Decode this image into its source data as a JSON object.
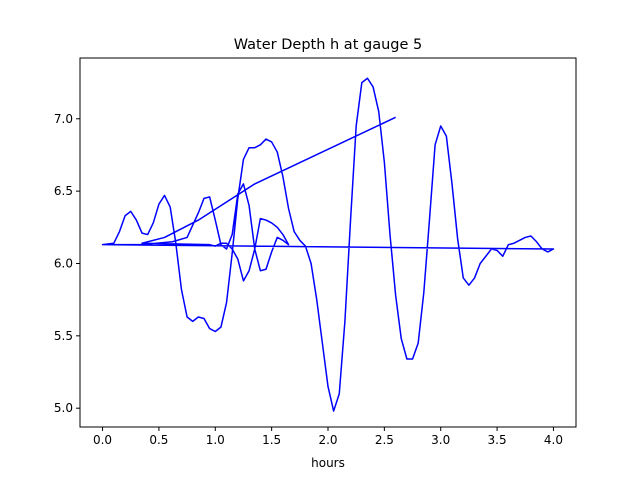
{
  "chart_data": {
    "type": "line",
    "title": "Water Depth h at gauge 5",
    "xlabel": "hours",
    "ylabel": "",
    "xlim": [
      -0.2,
      4.2
    ],
    "ylim": [
      4.87,
      7.42
    ],
    "xticks": [
      0.0,
      0.5,
      1.0,
      1.5,
      2.0,
      2.5,
      3.0,
      3.5,
      4.0
    ],
    "xtick_labels": [
      "0.0",
      "0.5",
      "1.0",
      "1.5",
      "2.0",
      "2.5",
      "3.0",
      "3.5",
      "4.0"
    ],
    "yticks": [
      5.0,
      5.5,
      6.0,
      6.5,
      7.0
    ],
    "ytick_labels": [
      "5.0",
      "5.5",
      "6.0",
      "6.5",
      "7.0"
    ],
    "grid": false,
    "legend": false,
    "color": "#0000ff",
    "series": [
      {
        "name": "",
        "x": [
          0.0,
          0.1,
          0.15,
          0.2,
          0.25,
          0.3,
          0.35,
          0.4,
          0.45,
          0.5,
          0.55,
          0.6,
          0.65,
          0.7,
          0.75,
          0.8,
          0.85,
          0.9,
          0.95,
          1.0,
          1.05,
          1.1,
          1.15,
          1.2,
          1.25,
          1.3,
          1.35,
          1.4,
          1.45,
          1.5,
          1.55,
          1.6,
          1.65,
          1.7,
          1.75,
          1.8,
          1.85,
          1.9,
          1.95,
          2.0,
          2.05,
          2.1,
          2.15,
          2.2,
          2.25,
          2.3,
          2.35,
          2.4,
          2.45,
          2.5,
          2.55,
          2.6,
          2.65,
          2.7,
          2.75,
          2.8,
          2.85,
          2.9,
          2.95,
          3.0,
          3.05,
          3.1,
          3.15,
          3.2,
          3.25,
          3.3,
          3.35,
          3.4,
          3.45,
          3.5,
          3.55,
          3.6,
          3.65,
          3.7,
          3.75,
          3.8,
          3.85,
          3.9,
          3.95,
          4.0,
          0.0,
          0.35,
          0.62,
          0.75,
          0.85,
          0.9,
          0.95,
          1.0,
          1.05,
          1.1,
          1.15,
          1.2,
          1.25,
          1.3,
          1.35,
          1.4,
          1.45,
          1.5,
          1.55,
          1.6,
          1.65,
          1.6,
          1.55,
          1.5,
          1.45,
          1.4,
          1.35,
          1.3,
          1.25,
          1.2,
          1.15,
          1.1,
          1.05,
          1.0,
          0.95,
          0.35,
          0.55,
          0.85,
          1.35,
          2.6
        ],
        "y": [
          6.13,
          6.14,
          6.22,
          6.33,
          6.36,
          6.3,
          6.21,
          6.2,
          6.28,
          6.41,
          6.47,
          6.39,
          6.14,
          5.82,
          5.63,
          5.6,
          5.63,
          5.62,
          5.55,
          5.53,
          5.56,
          5.73,
          6.07,
          6.45,
          6.72,
          6.8,
          6.8,
          6.82,
          6.86,
          6.84,
          6.77,
          6.6,
          6.38,
          6.22,
          6.16,
          6.12,
          6.0,
          5.75,
          5.45,
          5.15,
          4.98,
          5.1,
          5.6,
          6.3,
          6.95,
          7.25,
          7.28,
          7.22,
          7.05,
          6.7,
          6.2,
          5.78,
          5.48,
          5.34,
          5.34,
          5.45,
          5.8,
          6.3,
          6.82,
          6.95,
          6.88,
          6.55,
          6.17,
          5.9,
          5.85,
          5.9,
          6.0,
          6.05,
          6.1,
          6.09,
          6.05,
          6.13,
          6.14,
          6.16,
          6.18,
          6.19,
          6.15,
          6.1,
          6.08,
          6.1,
          6.13,
          6.13,
          6.15,
          6.18,
          6.35,
          6.45,
          6.46,
          6.3,
          6.13,
          6.1,
          6.2,
          6.48,
          6.55,
          6.4,
          6.1,
          5.95,
          5.96,
          6.08,
          6.18,
          6.16,
          6.13,
          6.2,
          6.25,
          6.28,
          6.3,
          6.31,
          6.1,
          5.95,
          5.88,
          6.03,
          6.1,
          6.14,
          6.14,
          6.12,
          6.13,
          6.14,
          6.18,
          6.3,
          6.55,
          7.01
        ]
      }
    ]
  }
}
